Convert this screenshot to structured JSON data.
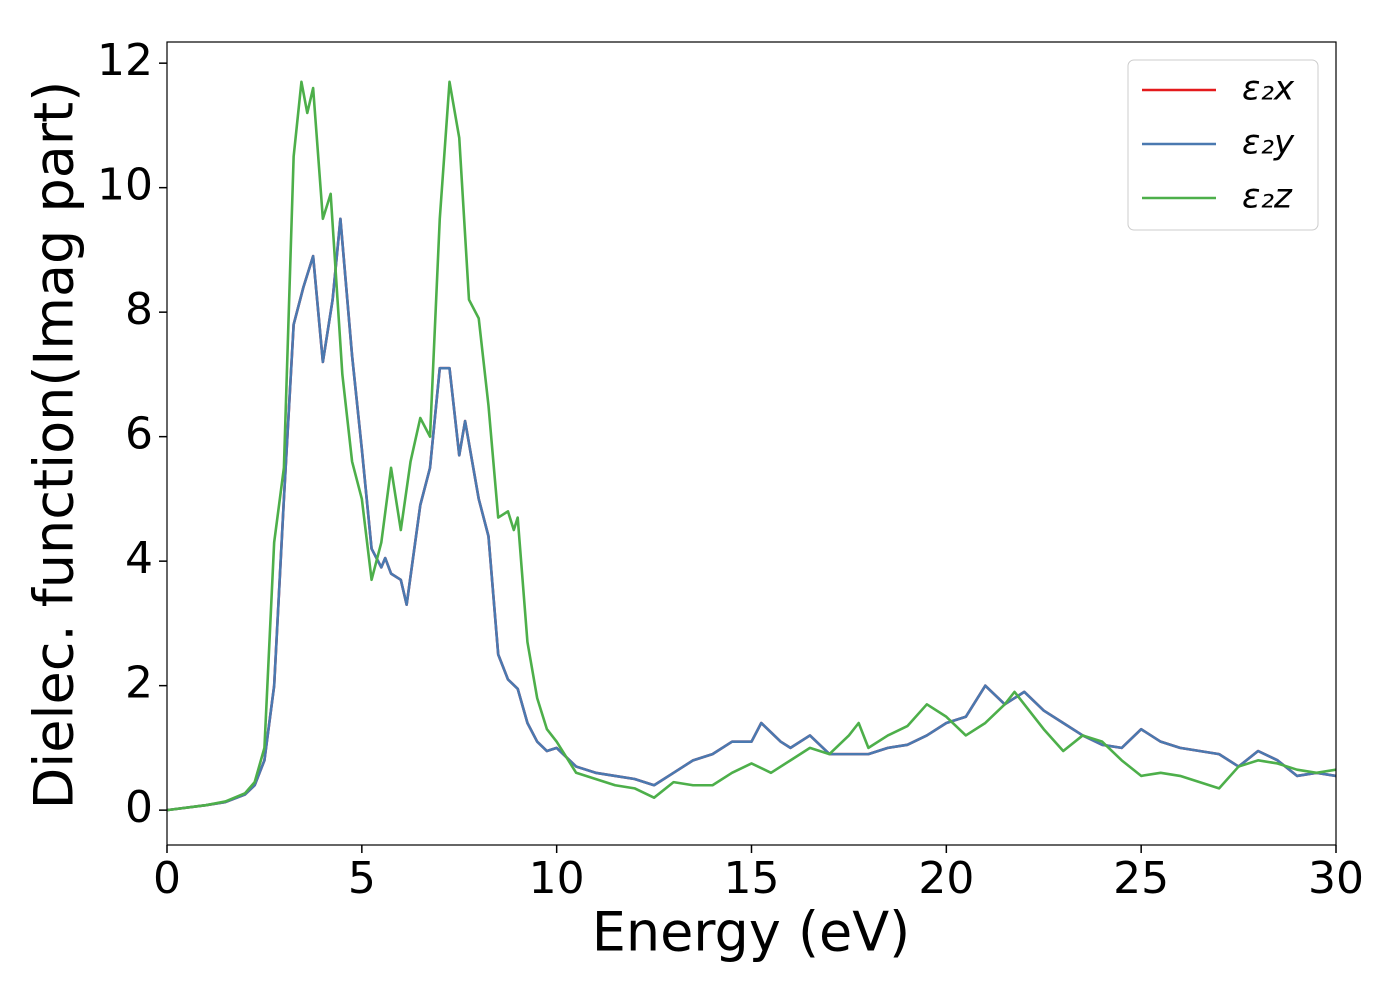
{
  "chart_data": {
    "type": "line",
    "xlabel": "Energy (eV)",
    "ylabel": "Dielec. function(Imag part)",
    "xlim": [
      0,
      30
    ],
    "ylim": [
      -0.56,
      12.34
    ],
    "xticks": [
      0,
      5,
      10,
      15,
      20,
      25,
      30
    ],
    "yticks": [
      0,
      2,
      4,
      6,
      8,
      10,
      12
    ],
    "grid": false,
    "legend": "upper right",
    "series": [
      {
        "name": "ε₂x",
        "color": "#e41a1c",
        "x": [
          0,
          1,
          1.5,
          2,
          2.25,
          2.5,
          2.75,
          3,
          3.25,
          3.5,
          3.75,
          4,
          4.25,
          4.45,
          4.75,
          5,
          5.25,
          5.5,
          5.6,
          5.75,
          6,
          6.15,
          6.5,
          6.75,
          7,
          7.25,
          7.5,
          7.65,
          8,
          8.25,
          8.5,
          8.75,
          9,
          9.25,
          9.5,
          9.75,
          10,
          10.5,
          11,
          11.5,
          12,
          12.5,
          13,
          13.5,
          14,
          14.5,
          15,
          15.25,
          15.75,
          16,
          16.5,
          17,
          17.5,
          18,
          18.5,
          19,
          19.5,
          20,
          20.5,
          21,
          21.5,
          22,
          22.5,
          23,
          23.5,
          24,
          24.5,
          25,
          25.5,
          26,
          26.5,
          27,
          27.5,
          28,
          28.5,
          29,
          29.5,
          30
        ],
        "values": [
          0,
          0.08,
          0.13,
          0.25,
          0.4,
          0.8,
          2.0,
          5.0,
          7.8,
          8.4,
          8.9,
          7.2,
          8.2,
          9.5,
          7.3,
          5.8,
          4.2,
          3.9,
          4.05,
          3.8,
          3.7,
          3.3,
          4.9,
          5.5,
          7.1,
          7.1,
          5.7,
          6.25,
          5.0,
          4.4,
          2.5,
          2.1,
          1.95,
          1.4,
          1.1,
          0.95,
          1.0,
          0.7,
          0.6,
          0.55,
          0.5,
          0.4,
          0.6,
          0.8,
          0.9,
          1.1,
          1.1,
          1.4,
          1.1,
          1.0,
          1.2,
          0.9,
          0.9,
          0.9,
          1.0,
          1.05,
          1.2,
          1.4,
          1.5,
          2.0,
          1.7,
          1.9,
          1.6,
          1.4,
          1.2,
          1.05,
          1.0,
          1.3,
          1.1,
          1.0,
          0.95,
          0.9,
          0.7,
          0.95,
          0.8,
          0.55,
          0.6,
          0.55
        ]
      },
      {
        "name": "ε₂y",
        "color": "#4a79b0",
        "x": [
          0,
          1,
          1.5,
          2,
          2.25,
          2.5,
          2.75,
          3,
          3.25,
          3.5,
          3.75,
          4,
          4.25,
          4.45,
          4.75,
          5,
          5.25,
          5.5,
          5.6,
          5.75,
          6,
          6.15,
          6.5,
          6.75,
          7,
          7.25,
          7.5,
          7.65,
          8,
          8.25,
          8.5,
          8.75,
          9,
          9.25,
          9.5,
          9.75,
          10,
          10.5,
          11,
          11.5,
          12,
          12.5,
          13,
          13.5,
          14,
          14.5,
          15,
          15.25,
          15.75,
          16,
          16.5,
          17,
          17.5,
          18,
          18.5,
          19,
          19.5,
          20,
          20.5,
          21,
          21.5,
          22,
          22.5,
          23,
          23.5,
          24,
          24.5,
          25,
          25.5,
          26,
          26.5,
          27,
          27.5,
          28,
          28.5,
          29,
          29.5,
          30
        ],
        "values": [
          0,
          0.08,
          0.13,
          0.25,
          0.4,
          0.8,
          2.0,
          5.0,
          7.8,
          8.4,
          8.9,
          7.2,
          8.2,
          9.5,
          7.3,
          5.8,
          4.2,
          3.9,
          4.05,
          3.8,
          3.7,
          3.3,
          4.9,
          5.5,
          7.1,
          7.1,
          5.7,
          6.25,
          5.0,
          4.4,
          2.5,
          2.1,
          1.95,
          1.4,
          1.1,
          0.95,
          1.0,
          0.7,
          0.6,
          0.55,
          0.5,
          0.4,
          0.6,
          0.8,
          0.9,
          1.1,
          1.1,
          1.4,
          1.1,
          1.0,
          1.2,
          0.9,
          0.9,
          0.9,
          1.0,
          1.05,
          1.2,
          1.4,
          1.5,
          2.0,
          1.7,
          1.9,
          1.6,
          1.4,
          1.2,
          1.05,
          1.0,
          1.3,
          1.1,
          1.0,
          0.95,
          0.9,
          0.7,
          0.95,
          0.8,
          0.55,
          0.6,
          0.55
        ]
      },
      {
        "name": "ε₂z",
        "color": "#4daf4a",
        "x": [
          0,
          1,
          1.5,
          2,
          2.25,
          2.5,
          2.75,
          3,
          3.25,
          3.45,
          3.6,
          3.75,
          4,
          4.2,
          4.5,
          4.75,
          5,
          5.25,
          5.5,
          5.75,
          6,
          6.25,
          6.5,
          6.75,
          7,
          7.25,
          7.5,
          7.75,
          8,
          8.25,
          8.5,
          8.75,
          8.9,
          9,
          9.25,
          9.5,
          9.75,
          10,
          10.5,
          11,
          11.5,
          12,
          12.5,
          13,
          13.5,
          14,
          14.5,
          15,
          15.5,
          16,
          16.5,
          17,
          17.5,
          17.75,
          18,
          18.5,
          19,
          19.5,
          20,
          20.5,
          21,
          21.5,
          21.75,
          22,
          22.5,
          23,
          23.5,
          24,
          24.5,
          25,
          25.5,
          26,
          26.5,
          27,
          27.5,
          28,
          28.5,
          29,
          29.5,
          30
        ],
        "values": [
          0,
          0.08,
          0.14,
          0.27,
          0.45,
          1.0,
          4.3,
          5.5,
          10.5,
          11.7,
          11.2,
          11.6,
          9.5,
          9.9,
          7.0,
          5.6,
          5.0,
          3.7,
          4.3,
          5.5,
          4.5,
          5.6,
          6.3,
          6.0,
          9.5,
          11.7,
          10.8,
          8.2,
          7.9,
          6.5,
          4.7,
          4.8,
          4.5,
          4.7,
          2.7,
          1.8,
          1.3,
          1.1,
          0.6,
          0.5,
          0.4,
          0.35,
          0.2,
          0.45,
          0.4,
          0.4,
          0.6,
          0.75,
          0.6,
          0.8,
          1.0,
          0.9,
          1.2,
          1.4,
          1.0,
          1.2,
          1.35,
          1.7,
          1.5,
          1.2,
          1.4,
          1.7,
          1.9,
          1.7,
          1.3,
          0.95,
          1.2,
          1.1,
          0.8,
          0.55,
          0.6,
          0.55,
          0.45,
          0.35,
          0.7,
          0.8,
          0.75,
          0.65,
          0.6,
          0.65
        ]
      }
    ]
  }
}
